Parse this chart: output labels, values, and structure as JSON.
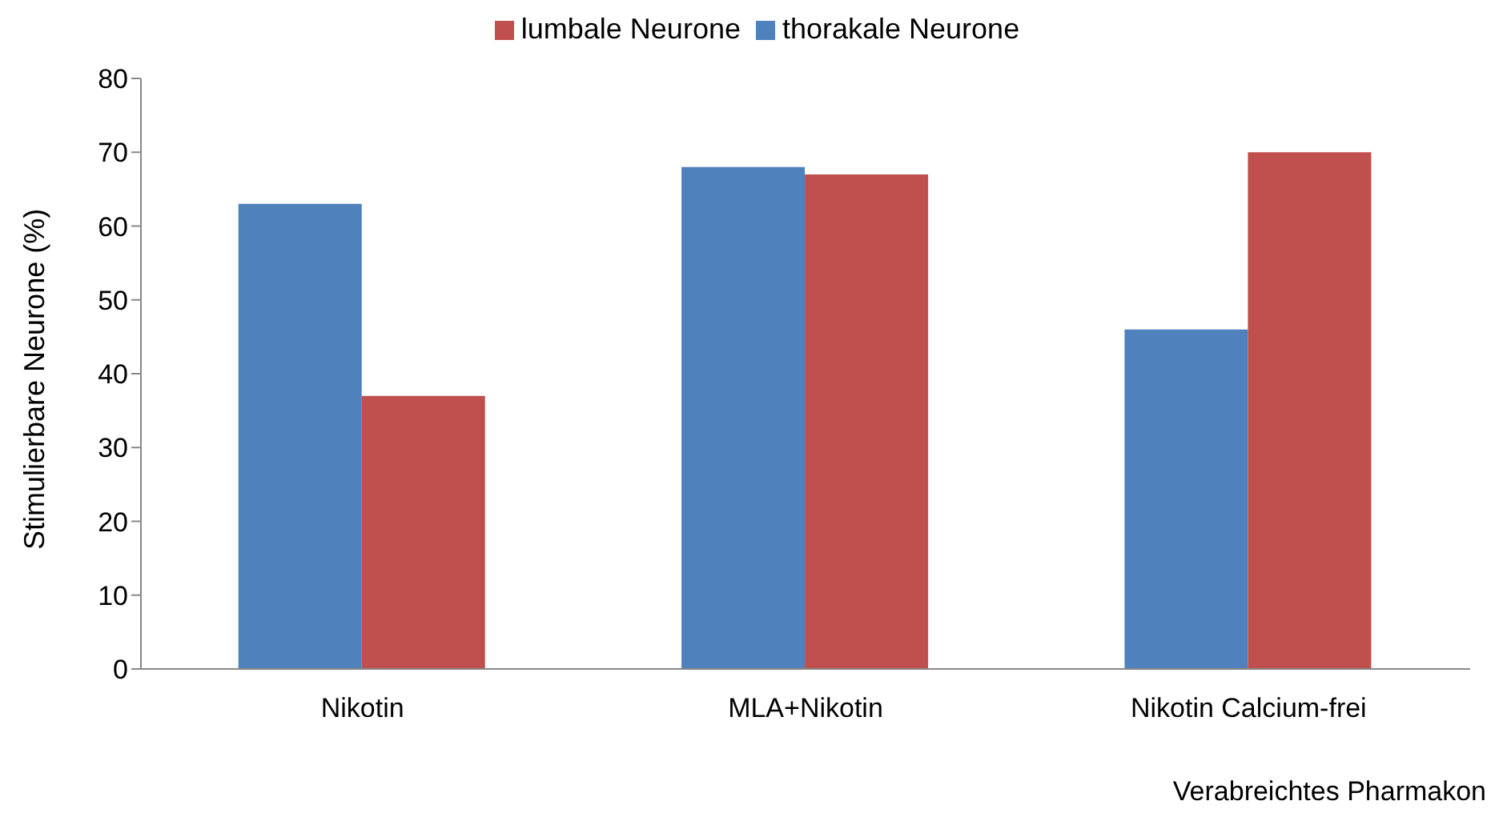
{
  "chart_data": {
    "type": "bar",
    "xlabel": "Verabreichtes Pharmakon",
    "ylabel": "Stimulierbare Neurone (%)",
    "categories": [
      "Nikotin",
      "MLA+Nikotin",
      "Nikotin Calcium-frei"
    ],
    "series": [
      {
        "name": "thorakale Neurone",
        "color": "#4f81bd",
        "values": [
          63,
          68,
          46
        ]
      },
      {
        "name": "lumbale Neurone",
        "color": "#c0504d",
        "values": [
          37,
          67,
          70
        ]
      }
    ],
    "ylim": [
      0,
      80
    ],
    "yticks": [
      0,
      10,
      20,
      30,
      40,
      50,
      60,
      70,
      80
    ],
    "grid": false,
    "legend": "top"
  }
}
